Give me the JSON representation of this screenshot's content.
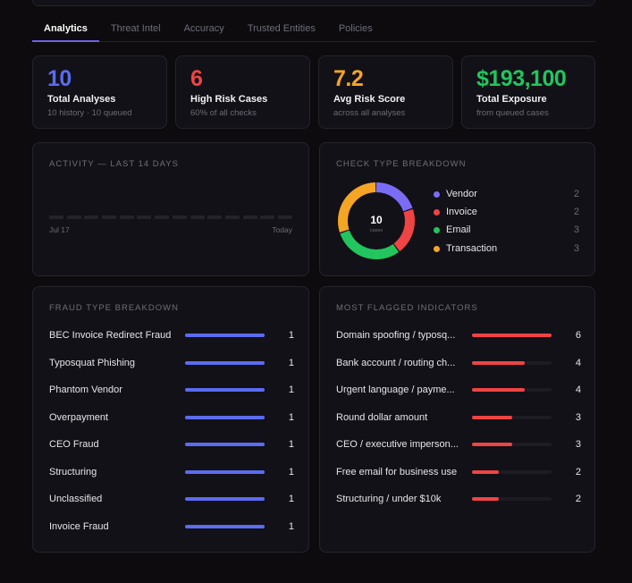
{
  "tabs": [
    "Analytics",
    "Threat Intel",
    "Accuracy",
    "Trusted Entities",
    "Policies"
  ],
  "stats": [
    {
      "value": "10",
      "label": "Total Analyses",
      "sub": "10 history · 10 queued",
      "color": "#5b6cf0"
    },
    {
      "value": "6",
      "label": "High Risk Cases",
      "sub": "60% of all checks",
      "color": "#ef4444"
    },
    {
      "value": "7.2",
      "label": "Avg Risk Score",
      "sub": "across all analyses",
      "color": "#f5a524"
    },
    {
      "value": "$193,100",
      "label": "Total Exposure",
      "sub": "from queued cases",
      "color": "#22c55e"
    }
  ],
  "activity": {
    "title": "ACTIVITY — LAST 14 DAYS",
    "start_label": "Jul 17",
    "end_label": "Today",
    "values": [
      0,
      0,
      0,
      0,
      0,
      0,
      0,
      0,
      0,
      0,
      0,
      0,
      0,
      0
    ]
  },
  "check_types": {
    "title": "CHECK TYPE BREAKDOWN",
    "center_value": "10",
    "center_label": "cases",
    "items": [
      {
        "label": "Vendor",
        "count": 2,
        "color": "#7b6cf6"
      },
      {
        "label": "Invoice",
        "count": 2,
        "color": "#ef4444"
      },
      {
        "label": "Email",
        "count": 3,
        "color": "#22c55e"
      },
      {
        "label": "Transaction",
        "count": 3,
        "color": "#f5a524"
      }
    ]
  },
  "fraud_types": {
    "title": "FRAUD TYPE BREAKDOWN",
    "bar_color": "#5b6cf0",
    "max": 1,
    "rows": [
      {
        "label": "BEC Invoice Redirect Fraud",
        "count": 1
      },
      {
        "label": "Typosquat Phishing",
        "count": 1
      },
      {
        "label": "Phantom Vendor",
        "count": 1
      },
      {
        "label": "Overpayment",
        "count": 1
      },
      {
        "label": "CEO Fraud",
        "count": 1
      },
      {
        "label": "Structuring",
        "count": 1
      },
      {
        "label": "Unclassified",
        "count": 1
      },
      {
        "label": "Invoice Fraud",
        "count": 1
      }
    ]
  },
  "indicators": {
    "title": "MOST FLAGGED INDICATORS",
    "bar_color": "#ef4444",
    "max": 6,
    "rows": [
      {
        "label": "Domain spoofing / typosq...",
        "count": 6
      },
      {
        "label": "Bank account / routing ch...",
        "count": 4
      },
      {
        "label": "Urgent language / payme...",
        "count": 4
      },
      {
        "label": "Round dollar amount",
        "count": 3
      },
      {
        "label": "CEO / executive imperson...",
        "count": 3
      },
      {
        "label": "Free email for business use",
        "count": 2
      },
      {
        "label": "Structuring / under $10k",
        "count": 2
      }
    ]
  }
}
